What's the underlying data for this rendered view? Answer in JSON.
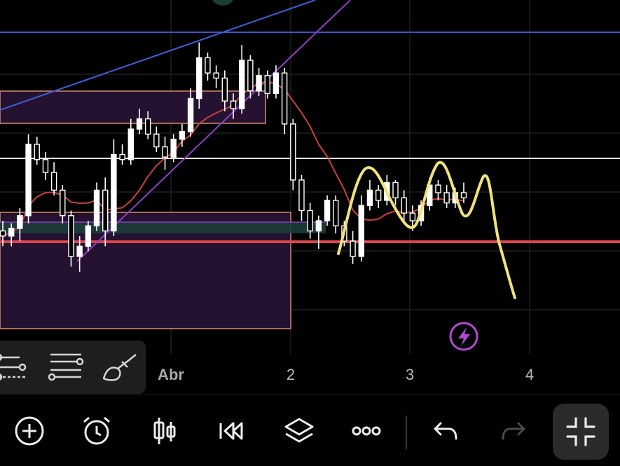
{
  "x_axis": {
    "labels": [
      {
        "text": "Abr",
        "style": "month"
      },
      {
        "text": "2",
        "style": "day"
      },
      {
        "text": "3",
        "style": "day"
      },
      {
        "text": "4",
        "style": "day"
      }
    ]
  },
  "colors": {
    "background": "#000000",
    "candle": "#ffffff",
    "grid": "#1f1f1f",
    "trendline_blue": "#3f5fd8",
    "trendline_purple": "#8d3fc4",
    "horizontal_blue": "#3d54c9",
    "horizontal_white": "#ffffff",
    "support_red": "#e0454e",
    "moving_average": "#c9403f",
    "zone_fill": "#2a1535",
    "zone_border": "#d98a6a",
    "green_zone": "#1c3d38",
    "projection": "#f1e27a",
    "alert_icon": "#b14ad3"
  },
  "chart_data": {
    "type": "candlestick",
    "x_ticks": [
      "Abr",
      "2",
      "3",
      "4"
    ],
    "series": [
      {
        "kind": "ohlc",
        "candles": [
          [
            14.2,
            14.6,
            13.6,
            14.0
          ],
          [
            14.0,
            14.5,
            13.6,
            14.3
          ],
          [
            14.3,
            15.1,
            13.8,
            14.8
          ],
          [
            14.8,
            18.0,
            14.5,
            17.6
          ],
          [
            17.6,
            17.9,
            16.8,
            17.0
          ],
          [
            17.0,
            17.3,
            16.2,
            16.5
          ],
          [
            16.5,
            16.9,
            15.6,
            15.8
          ],
          [
            15.8,
            16.0,
            14.5,
            14.8
          ],
          [
            14.8,
            15.0,
            12.8,
            13.2
          ],
          [
            13.2,
            14.0,
            12.6,
            13.6
          ],
          [
            13.6,
            14.6,
            13.4,
            14.4
          ],
          [
            14.4,
            16.1,
            14.2,
            15.8
          ],
          [
            15.8,
            16.3,
            13.6,
            14.2
          ],
          [
            14.2,
            17.8,
            14.0,
            17.2
          ],
          [
            17.2,
            17.6,
            16.8,
            17.0
          ],
          [
            17.0,
            18.6,
            16.8,
            18.2
          ],
          [
            18.2,
            19.0,
            18.0,
            18.6
          ],
          [
            18.6,
            18.9,
            17.8,
            18.0
          ],
          [
            18.0,
            18.3,
            17.3,
            17.5
          ],
          [
            17.5,
            17.9,
            16.6,
            17.1
          ],
          [
            17.1,
            18.0,
            16.9,
            17.8
          ],
          [
            17.8,
            18.4,
            17.5,
            18.1
          ],
          [
            18.1,
            19.8,
            17.9,
            19.4
          ],
          [
            19.4,
            21.6,
            19.0,
            21.0
          ],
          [
            21.0,
            21.2,
            20.1,
            20.4
          ],
          [
            20.4,
            20.7,
            19.8,
            20.2
          ],
          [
            20.2,
            20.5,
            18.9,
            19.3
          ],
          [
            19.3,
            19.6,
            18.6,
            19.0
          ],
          [
            19.0,
            21.5,
            18.8,
            20.9
          ],
          [
            20.9,
            21.1,
            19.4,
            19.7
          ],
          [
            19.7,
            20.6,
            19.5,
            20.3
          ],
          [
            20.3,
            20.5,
            19.4,
            19.6
          ],
          [
            19.6,
            20.7,
            19.4,
            20.4
          ],
          [
            20.4,
            20.6,
            18.0,
            18.4
          ],
          [
            18.4,
            18.6,
            15.8,
            16.2
          ],
          [
            16.2,
            16.4,
            14.6,
            15.0
          ],
          [
            15.0,
            15.3,
            13.9,
            14.2
          ],
          [
            14.2,
            14.8,
            13.5,
            14.6
          ],
          [
            14.6,
            15.6,
            14.4,
            15.4
          ],
          [
            15.4,
            15.6,
            14.1,
            14.4
          ],
          [
            14.4,
            14.6,
            13.6,
            13.8
          ],
          [
            13.8,
            14.2,
            12.9,
            13.2
          ],
          [
            13.2,
            15.6,
            13.0,
            15.2
          ],
          [
            15.2,
            16.2,
            15.0,
            15.8
          ],
          [
            15.8,
            16.0,
            15.1,
            15.4
          ],
          [
            15.4,
            16.4,
            15.2,
            16.1
          ],
          [
            16.1,
            16.2,
            15.2,
            15.5
          ],
          [
            15.5,
            15.8,
            14.6,
            14.9
          ],
          [
            14.9,
            15.2,
            14.2,
            14.6
          ],
          [
            14.6,
            15.4,
            14.4,
            15.2
          ],
          [
            15.2,
            16.3,
            15.0,
            16.0
          ],
          [
            16.0,
            16.2,
            15.4,
            15.7
          ],
          [
            15.7,
            16.0,
            15.1,
            15.3
          ],
          [
            15.3,
            15.9,
            15.1,
            15.7
          ],
          [
            15.7,
            16.1,
            15.3,
            15.5
          ]
        ]
      },
      {
        "kind": "moving_average",
        "name": ""
      }
    ],
    "grid": true,
    "legend": false
  }
}
